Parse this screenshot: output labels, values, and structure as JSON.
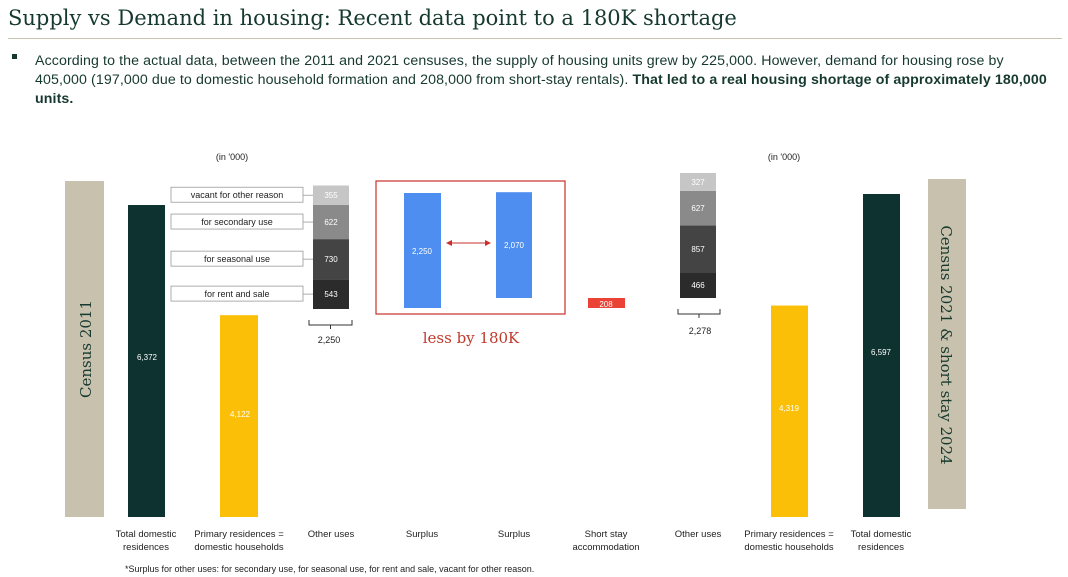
{
  "header": {
    "title": "Supply vs Demand in housing: Recent data point to a 180K shortage"
  },
  "summary": {
    "text": "According to the actual data, between the 2011 and 2021 censuses, the supply of housing units grew by 225,000. However, demand for housing rose by 405,000 (197,000 due to domestic household formation and 208,000 from short-stay rentals). ",
    "emphasis": "That led to a real housing shortage of approximately 180,000 units."
  },
  "colors": {
    "census_panel": "#c8c1ad",
    "total": "#0d3230",
    "primary": "#fbbf07",
    "surplus": "#4d8ef0",
    "shortstay": "#ea4335",
    "stack_shades": [
      "#2b2b2b",
      "#444444",
      "#8a8a8a",
      "#c6c6c6"
    ],
    "highlight_box": "#c9302c",
    "less_text": "#c0392b"
  },
  "chart_data": {
    "type": "bar",
    "unit_label_left": "(in '000)",
    "unit_label_right": "(in '000)",
    "panel_left": "Census 2011",
    "panel_right": "Census 2021 & short stay 2024",
    "categories": [
      "Total domestic residences",
      "Primary residences = domestic households",
      "Other uses",
      "Surplus",
      "Surplus",
      "Short stay accommodation",
      "Other uses",
      "Primary residences = domestic households",
      "Total domestic residences"
    ],
    "total_2011": 6372,
    "total_2011_label": "6,372",
    "primary_2011": 4122,
    "primary_2011_label": "4,122",
    "other_uses_2011": [
      {
        "name": "for rent and sale",
        "value": 543,
        "label": "543"
      },
      {
        "name": "for seasonal use",
        "value": 730,
        "label": "730"
      },
      {
        "name": "for secondary use",
        "value": 622,
        "label": "622"
      },
      {
        "name": "vacant for other reason",
        "value": 355,
        "label": "355"
      }
    ],
    "other_uses_2011_total": "2,250",
    "surplus_2011": 2250,
    "surplus_2011_label": "2,250",
    "surplus_2021": 2070,
    "surplus_2021_label": "2,070",
    "gap_label": "less by 180K",
    "short_stay": 208,
    "short_stay_label": "208",
    "other_uses_2021": [
      {
        "name": "for rent and sale",
        "value": 466,
        "label": "466"
      },
      {
        "name": "for seasonal use",
        "value": 857,
        "label": "857"
      },
      {
        "name": "for secondary use",
        "value": 627,
        "label": "627"
      },
      {
        "name": "vacant for other reason",
        "value": 327,
        "label": "327"
      }
    ],
    "other_uses_2021_total": "2,278",
    "primary_2021": 4319,
    "primary_2021_label": "4,319",
    "total_2021": 6597,
    "total_2021_label": "6,597",
    "footnote": "*Surplus for other uses: for secondary use, for seasonal use, for rent and sale, vacant for other reason."
  }
}
